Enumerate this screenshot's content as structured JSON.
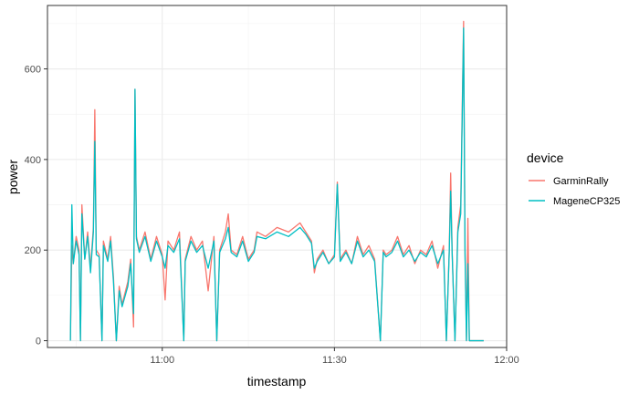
{
  "chart_data": {
    "type": "line",
    "xlabel": "timestamp",
    "ylabel": "power",
    "x_tick_labels": [
      "11:00",
      "11:30",
      "12:00"
    ],
    "x_ticks_minutes": [
      660,
      690,
      720
    ],
    "y_ticks": [
      0,
      200,
      400,
      600
    ],
    "y_tick_labels": [
      "0",
      "200",
      "400",
      "600"
    ],
    "xlim": [
      "10:40",
      "12:00"
    ],
    "ylim": [
      -15,
      740
    ],
    "grid": true,
    "legend": {
      "title": "device",
      "position": "right"
    },
    "series": [
      {
        "name": "GarminRally",
        "color": "#F8766D",
        "points": [
          [
            "10:44:00",
            0
          ],
          [
            "10:44:15",
            210
          ],
          [
            "10:44:30",
            170
          ],
          [
            "10:45:00",
            230
          ],
          [
            "10:45:30",
            200
          ],
          [
            "10:45:45",
            0
          ],
          [
            "10:46:00",
            300
          ],
          [
            "10:46:30",
            180
          ],
          [
            "10:47:00",
            240
          ],
          [
            "10:47:30",
            160
          ],
          [
            "10:48:00",
            250
          ],
          [
            "10:48:15",
            510
          ],
          [
            "10:48:30",
            200
          ],
          [
            "10:49:00",
            190
          ],
          [
            "10:49:30",
            0
          ],
          [
            "10:49:45",
            220
          ],
          [
            "10:50:30",
            180
          ],
          [
            "10:51:00",
            230
          ],
          [
            "10:51:30",
            140
          ],
          [
            "10:52:00",
            0
          ],
          [
            "10:52:30",
            120
          ],
          [
            "10:53:00",
            80
          ],
          [
            "10:54:00",
            130
          ],
          [
            "10:54:30",
            180
          ],
          [
            "10:55:00",
            30
          ],
          [
            "10:55:15",
            555
          ],
          [
            "10:55:30",
            230
          ],
          [
            "10:56:00",
            200
          ],
          [
            "10:57:00",
            240
          ],
          [
            "10:58:00",
            180
          ],
          [
            "10:59:00",
            230
          ],
          [
            "11:00:00",
            190
          ],
          [
            "11:00:30",
            90
          ],
          [
            "11:01:00",
            220
          ],
          [
            "11:02:00",
            200
          ],
          [
            "11:03:00",
            240
          ],
          [
            "11:03:45",
            0
          ],
          [
            "11:04:00",
            180
          ],
          [
            "11:05:00",
            230
          ],
          [
            "11:06:00",
            200
          ],
          [
            "11:07:00",
            220
          ],
          [
            "11:08:00",
            110
          ],
          [
            "11:09:00",
            230
          ],
          [
            "11:09:30",
            0
          ],
          [
            "11:10:00",
            200
          ],
          [
            "11:11:00",
            240
          ],
          [
            "11:11:30",
            280
          ],
          [
            "11:12:00",
            200
          ],
          [
            "11:13:00",
            190
          ],
          [
            "11:14:00",
            230
          ],
          [
            "11:15:00",
            180
          ],
          [
            "11:16:00",
            200
          ],
          [
            "11:16:30",
            240
          ],
          [
            "11:18:00",
            230
          ],
          [
            "11:20:00",
            250
          ],
          [
            "11:22:00",
            240
          ],
          [
            "11:24:00",
            260
          ],
          [
            "11:25:00",
            240
          ],
          [
            "11:26:00",
            220
          ],
          [
            "11:26:30",
            150
          ],
          [
            "11:27:00",
            180
          ],
          [
            "11:28:00",
            200
          ],
          [
            "11:29:00",
            170
          ],
          [
            "11:30:00",
            190
          ],
          [
            "11:30:30",
            350
          ],
          [
            "11:31:00",
            180
          ],
          [
            "11:32:00",
            200
          ],
          [
            "11:33:00",
            170
          ],
          [
            "11:34:00",
            230
          ],
          [
            "11:35:00",
            190
          ],
          [
            "11:36:00",
            210
          ],
          [
            "11:37:00",
            180
          ],
          [
            "11:38:00",
            0
          ],
          [
            "11:38:30",
            200
          ],
          [
            "11:39:00",
            190
          ],
          [
            "11:40:00",
            200
          ],
          [
            "11:41:00",
            230
          ],
          [
            "11:42:00",
            190
          ],
          [
            "11:43:00",
            210
          ],
          [
            "11:44:00",
            170
          ],
          [
            "11:45:00",
            200
          ],
          [
            "11:46:00",
            190
          ],
          [
            "11:47:00",
            220
          ],
          [
            "11:48:00",
            160
          ],
          [
            "11:49:00",
            210
          ],
          [
            "11:49:30",
            0
          ],
          [
            "11:50:00",
            200
          ],
          [
            "11:50:15",
            370
          ],
          [
            "11:50:30",
            200
          ],
          [
            "11:51:00",
            0
          ],
          [
            "11:51:30",
            250
          ],
          [
            "11:52:00",
            300
          ],
          [
            "11:52:30",
            705
          ],
          [
            "11:52:45",
            200
          ],
          [
            "11:53:00",
            0
          ],
          [
            "11:53:15",
            270
          ],
          [
            "11:53:30",
            0
          ],
          [
            "11:56:00",
            0
          ]
        ]
      },
      {
        "name": "MageneCP325",
        "color": "#00BFC4",
        "points": [
          [
            "10:44:00",
            0
          ],
          [
            "10:44:15",
            300
          ],
          [
            "10:44:30",
            170
          ],
          [
            "10:45:00",
            220
          ],
          [
            "10:45:30",
            190
          ],
          [
            "10:45:45",
            0
          ],
          [
            "10:46:00",
            280
          ],
          [
            "10:46:30",
            180
          ],
          [
            "10:47:00",
            230
          ],
          [
            "10:47:30",
            150
          ],
          [
            "10:48:00",
            240
          ],
          [
            "10:48:15",
            440
          ],
          [
            "10:48:30",
            190
          ],
          [
            "10:49:00",
            185
          ],
          [
            "10:49:30",
            0
          ],
          [
            "10:49:45",
            210
          ],
          [
            "10:50:30",
            175
          ],
          [
            "10:51:00",
            220
          ],
          [
            "10:51:30",
            130
          ],
          [
            "10:52:00",
            0
          ],
          [
            "10:52:30",
            110
          ],
          [
            "10:53:00",
            75
          ],
          [
            "10:54:00",
            120
          ],
          [
            "10:54:30",
            170
          ],
          [
            "10:55:00",
            60
          ],
          [
            "10:55:15",
            555
          ],
          [
            "10:55:30",
            225
          ],
          [
            "10:56:00",
            195
          ],
          [
            "10:57:00",
            230
          ],
          [
            "10:58:00",
            175
          ],
          [
            "10:59:00",
            220
          ],
          [
            "11:00:00",
            185
          ],
          [
            "11:00:30",
            160
          ],
          [
            "11:01:00",
            210
          ],
          [
            "11:02:00",
            195
          ],
          [
            "11:03:00",
            225
          ],
          [
            "11:03:45",
            0
          ],
          [
            "11:04:00",
            175
          ],
          [
            "11:05:00",
            220
          ],
          [
            "11:06:00",
            195
          ],
          [
            "11:07:00",
            210
          ],
          [
            "11:08:00",
            160
          ],
          [
            "11:09:00",
            220
          ],
          [
            "11:09:30",
            0
          ],
          [
            "11:10:00",
            195
          ],
          [
            "11:11:00",
            225
          ],
          [
            "11:11:30",
            250
          ],
          [
            "11:12:00",
            195
          ],
          [
            "11:13:00",
            185
          ],
          [
            "11:14:00",
            220
          ],
          [
            "11:15:00",
            175
          ],
          [
            "11:16:00",
            195
          ],
          [
            "11:16:30",
            230
          ],
          [
            "11:18:00",
            225
          ],
          [
            "11:20:00",
            240
          ],
          [
            "11:22:00",
            230
          ],
          [
            "11:24:00",
            250
          ],
          [
            "11:25:00",
            235
          ],
          [
            "11:26:00",
            215
          ],
          [
            "11:26:30",
            160
          ],
          [
            "11:27:00",
            175
          ],
          [
            "11:28:00",
            195
          ],
          [
            "11:29:00",
            170
          ],
          [
            "11:30:00",
            185
          ],
          [
            "11:30:30",
            345
          ],
          [
            "11:31:00",
            175
          ],
          [
            "11:32:00",
            195
          ],
          [
            "11:33:00",
            170
          ],
          [
            "11:34:00",
            220
          ],
          [
            "11:35:00",
            185
          ],
          [
            "11:36:00",
            200
          ],
          [
            "11:37:00",
            175
          ],
          [
            "11:38:00",
            0
          ],
          [
            "11:38:30",
            195
          ],
          [
            "11:39:00",
            185
          ],
          [
            "11:40:00",
            195
          ],
          [
            "11:41:00",
            220
          ],
          [
            "11:42:00",
            185
          ],
          [
            "11:43:00",
            200
          ],
          [
            "11:44:00",
            175
          ],
          [
            "11:45:00",
            195
          ],
          [
            "11:46:00",
            185
          ],
          [
            "11:47:00",
            210
          ],
          [
            "11:48:00",
            170
          ],
          [
            "11:49:00",
            200
          ],
          [
            "11:49:30",
            0
          ],
          [
            "11:50:00",
            195
          ],
          [
            "11:50:15",
            330
          ],
          [
            "11:50:30",
            195
          ],
          [
            "11:51:00",
            0
          ],
          [
            "11:51:30",
            240
          ],
          [
            "11:52:00",
            280
          ],
          [
            "11:52:30",
            690
          ],
          [
            "11:52:45",
            190
          ],
          [
            "11:53:00",
            0
          ],
          [
            "11:53:15",
            170
          ],
          [
            "11:53:30",
            0
          ],
          [
            "11:56:00",
            0
          ]
        ]
      }
    ]
  }
}
